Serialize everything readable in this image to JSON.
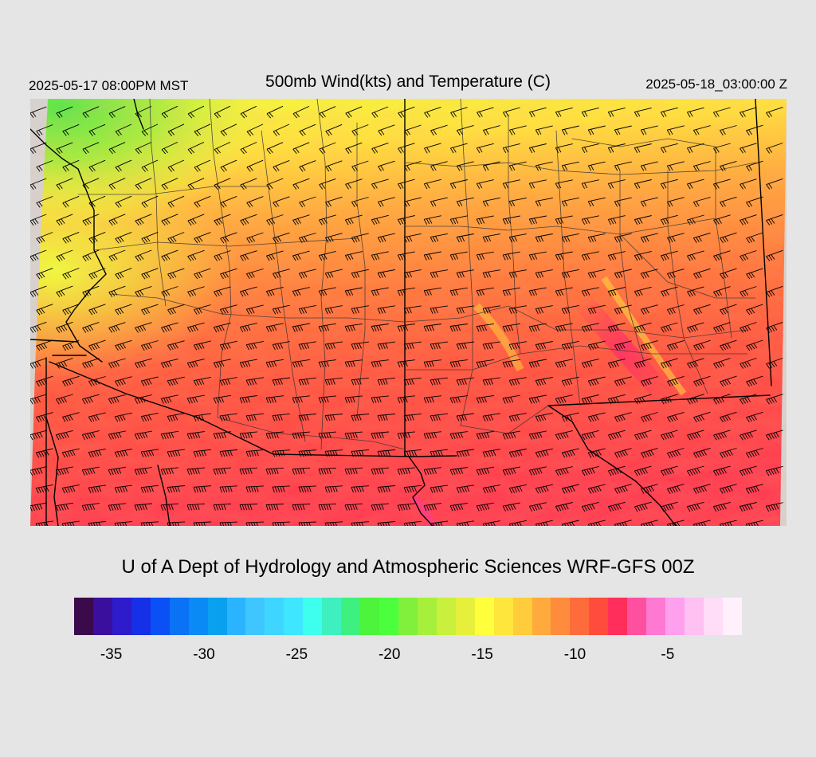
{
  "header": {
    "valid_local": "2025-05-17 08:00PM MST",
    "title": "500mb Wind(kts) and Temperature (C)",
    "valid_utc": "2025-05-18_03:00:00 Z"
  },
  "footer": {
    "credit": "U of A Dept of Hydrology and Atmospheric Sciences WRF-GFS 00Z"
  },
  "colorbar": {
    "colors": [
      "#3b0a4a",
      "#3a0f9e",
      "#2d1bcc",
      "#1530e6",
      "#0a50f5",
      "#0a72f5",
      "#0a8af5",
      "#0aa0f0",
      "#2ab4ff",
      "#40c6ff",
      "#3ed6ff",
      "#3ee6ff",
      "#3effee",
      "#3ef0c0",
      "#3ef080",
      "#4cf43c",
      "#4cff3c",
      "#80f03c",
      "#a6f03c",
      "#c8f03c",
      "#e6f03c",
      "#ffff3c",
      "#ffe63c",
      "#ffcc3c",
      "#ffaa3c",
      "#ff8c3c",
      "#ff6c3c",
      "#ff4c3c",
      "#ff2e5a",
      "#ff50a0",
      "#ff78d2",
      "#ffa0ee",
      "#ffc0f2",
      "#ffdcf8",
      "#fff0fc"
    ],
    "ticks": [
      "-35",
      "-30",
      "-25",
      "-20",
      "-15",
      "-10",
      "-5"
    ],
    "tick_values": [
      -35,
      -30,
      -25,
      -20,
      -15,
      -10,
      -5
    ],
    "range": [
      -37,
      -1
    ]
  },
  "map": {
    "wind_units": "kts",
    "temp_units": "C",
    "dominant_wind_direction": "southwest to west",
    "temperature_range_c": [
      -20,
      -6
    ]
  }
}
